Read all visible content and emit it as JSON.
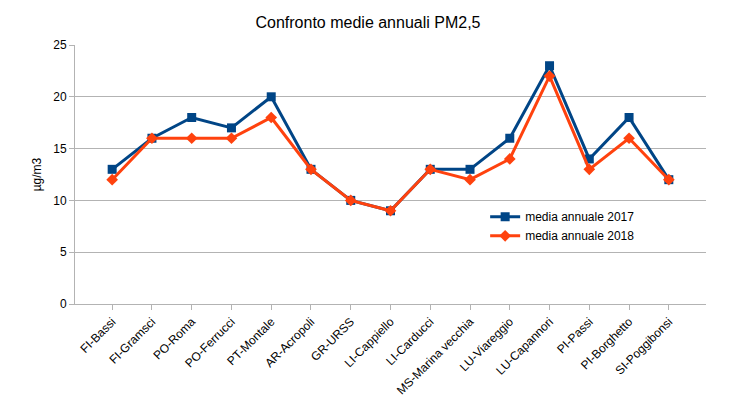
{
  "chart_data": {
    "type": "line",
    "title": "Confronto medie annuali PM2,5",
    "y_label": "µg/m3",
    "categories": [
      "FI-Bassi",
      "FI-Gramsci",
      "PO-Roma",
      "PO-Ferrucci",
      "PT-Montale",
      "AR-Acropoli",
      "GR-URSS",
      "LI-Cappiello",
      "LI-Carducci",
      "MS-Marina vecchia",
      "LU-Viareggio",
      "LU-Capannori",
      "PI-Passi",
      "PI-Borghetto",
      "SI-Poggibonsi"
    ],
    "series": [
      {
        "name": "media annuale 2017",
        "color": "#004586",
        "marker": "square",
        "line_style": "solid",
        "values": [
          13,
          16,
          18,
          17,
          20,
          13,
          10,
          9,
          13,
          13,
          16,
          23,
          14,
          18,
          12
        ]
      },
      {
        "name": "media annuale 2018",
        "color": "#ff420e",
        "marker": "diamond",
        "line_style": "solid",
        "values": [
          12,
          16,
          16,
          16,
          18,
          13,
          10,
          9,
          13,
          12,
          14,
          22,
          13,
          16,
          12
        ]
      }
    ],
    "ylim": [
      0,
      25
    ],
    "yticks": [
      0,
      5,
      10,
      15,
      20,
      25
    ],
    "grid": true,
    "legend": "right"
  }
}
